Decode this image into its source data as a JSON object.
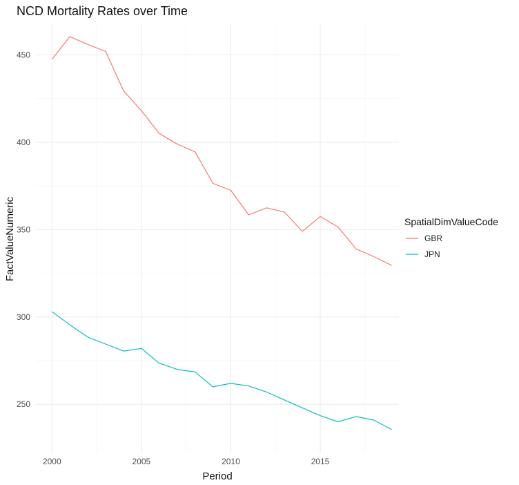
{
  "chart_data": {
    "type": "line",
    "title": "NCD Mortality Rates over Time",
    "xlabel": "Period",
    "ylabel": "FactValueNumeric",
    "xlim": [
      1999.1,
      2019.4
    ],
    "ylim": [
      222,
      468
    ],
    "x_ticks": [
      2000,
      2005,
      2010,
      2015
    ],
    "x_minor_ticks": [
      2002.5,
      2007.5,
      2012.5,
      2017.5
    ],
    "y_ticks": [
      250,
      300,
      350,
      400,
      450
    ],
    "y_minor_ticks": [
      225,
      275,
      325,
      375,
      425
    ],
    "grid": true,
    "legend": {
      "title": "SpatialDimValueCode",
      "placement": "right"
    },
    "x": [
      2000,
      2001,
      2002,
      2003,
      2004,
      2005,
      2006,
      2007,
      2008,
      2009,
      2010,
      2011,
      2012,
      2013,
      2014,
      2015,
      2016,
      2017,
      2018,
      2019
    ],
    "series": [
      {
        "name": "GBR",
        "color": "#F8766D",
        "values": [
          447.5,
          460.5,
          456,
          452,
          429.5,
          418,
          405,
          399,
          394.5,
          376.5,
          372.5,
          358.5,
          362.5,
          360,
          349,
          357.5,
          351.5,
          339,
          334.5,
          329.5
        ]
      },
      {
        "name": "JPN",
        "color": "#00BFC4",
        "values": [
          303,
          295.5,
          288.5,
          284.5,
          280.5,
          282,
          273.5,
          270,
          268.5,
          260,
          262,
          260.5,
          257,
          252.5,
          248,
          243.5,
          240,
          243,
          241,
          235.5
        ]
      }
    ]
  }
}
